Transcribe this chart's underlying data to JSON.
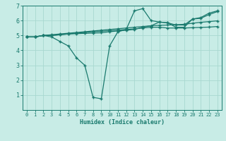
{
  "xlabel": "Humidex (Indice chaleur)",
  "ylabel": "",
  "xlim": [
    -0.5,
    23.5
  ],
  "ylim": [
    0,
    7
  ],
  "xticks": [
    0,
    1,
    2,
    3,
    4,
    5,
    6,
    7,
    8,
    9,
    10,
    11,
    12,
    13,
    14,
    15,
    16,
    17,
    18,
    19,
    20,
    21,
    22,
    23
  ],
  "yticks": [
    1,
    2,
    3,
    4,
    5,
    6,
    7
  ],
  "bg_color": "#c8ece6",
  "line_color": "#1a7a6e",
  "grid_color": "#a8d8d0",
  "series": [
    {
      "x": [
        0,
        1,
        2,
        3,
        4,
        5,
        6,
        7,
        8,
        9,
        10,
        11,
        12,
        13,
        14,
        15,
        16,
        17,
        18,
        19,
        20,
        21,
        22,
        23
      ],
      "y": [
        4.9,
        4.9,
        5.0,
        4.9,
        4.6,
        4.3,
        3.5,
        3.0,
        0.85,
        0.75,
        4.3,
        5.25,
        5.4,
        6.65,
        6.8,
        6.0,
        5.9,
        5.85,
        5.55,
        5.55,
        6.1,
        6.15,
        6.4,
        6.6
      ]
    },
    {
      "x": [
        0,
        1,
        2,
        3,
        4,
        5,
        6,
        7,
        8,
        9,
        10,
        11,
        12,
        13,
        14,
        15,
        16,
        17,
        18,
        19,
        20,
        21,
        22,
        23
      ],
      "y": [
        4.9,
        4.9,
        5.0,
        5.05,
        5.1,
        5.15,
        5.2,
        5.25,
        5.3,
        5.35,
        5.4,
        5.45,
        5.5,
        5.55,
        5.6,
        5.65,
        5.68,
        5.7,
        5.72,
        5.75,
        5.82,
        5.88,
        5.93,
        5.98
      ]
    },
    {
      "x": [
        0,
        1,
        2,
        3,
        4,
        5,
        6,
        7,
        8,
        9,
        10,
        11,
        12,
        13,
        14,
        15,
        16,
        17,
        18,
        19,
        20,
        21,
        22,
        23
      ],
      "y": [
        4.9,
        4.9,
        5.0,
        5.0,
        5.05,
        5.1,
        5.12,
        5.14,
        5.16,
        5.18,
        5.25,
        5.3,
        5.35,
        5.4,
        5.55,
        5.65,
        5.9,
        5.85,
        5.7,
        5.7,
        6.1,
        6.2,
        6.5,
        6.65
      ]
    },
    {
      "x": [
        0,
        1,
        2,
        3,
        4,
        5,
        6,
        7,
        8,
        9,
        10,
        11,
        12,
        13,
        14,
        15,
        16,
        17,
        18,
        19,
        20,
        21,
        22,
        23
      ],
      "y": [
        4.9,
        4.9,
        5.0,
        5.0,
        5.05,
        5.1,
        5.15,
        5.2,
        5.25,
        5.28,
        5.32,
        5.36,
        5.4,
        5.44,
        5.5,
        5.55,
        5.55,
        5.5,
        5.5,
        5.5,
        5.52,
        5.54,
        5.56,
        5.6
      ]
    }
  ]
}
